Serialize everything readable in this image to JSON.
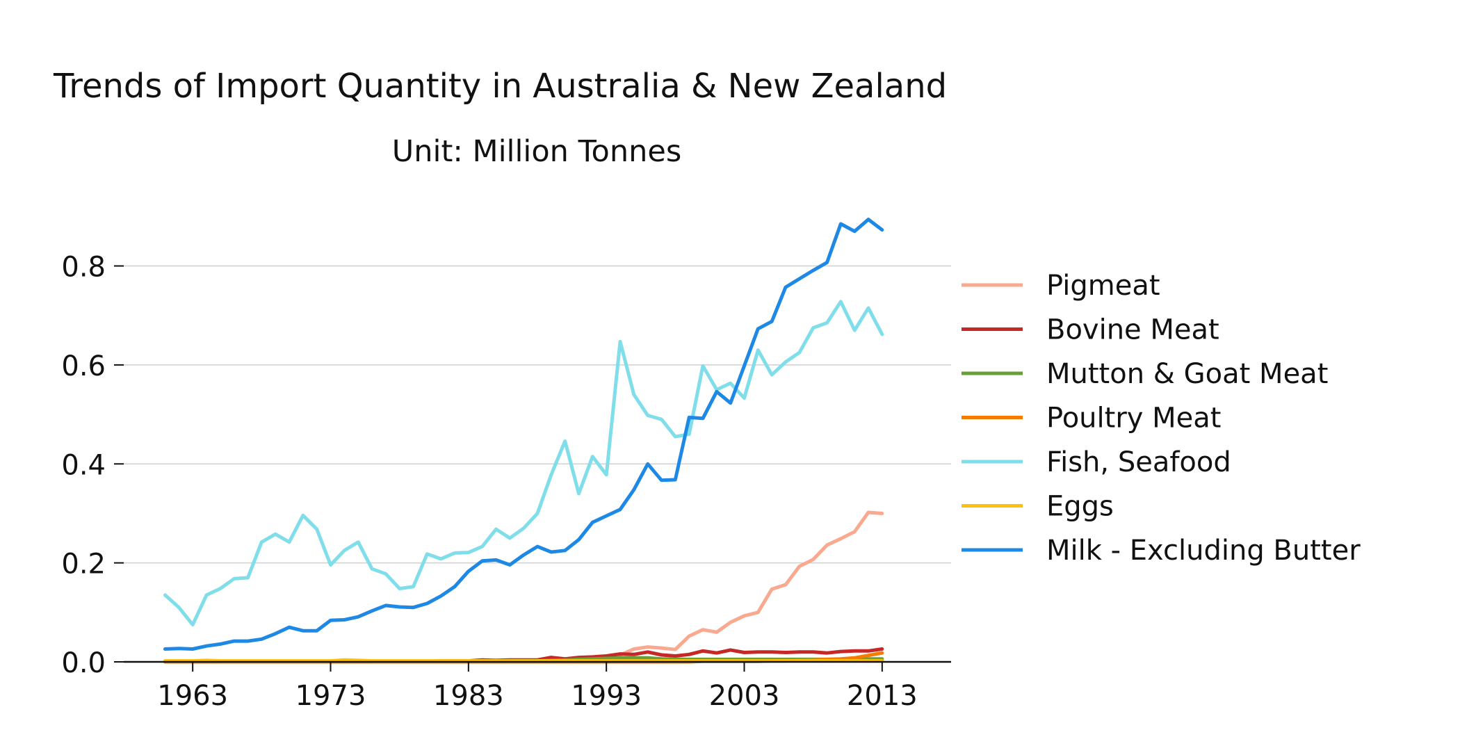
{
  "chart_data": {
    "type": "line",
    "title": "Trends of Import Quantity in Australia & New Zealand",
    "subtitle": "Unit: Million Tonnes",
    "xlabel": "",
    "ylabel": "",
    "xlim": [
      1958,
      2018
    ],
    "ylim": [
      0,
      0.93
    ],
    "xticks": [
      1963,
      1973,
      1983,
      1993,
      2003,
      2013
    ],
    "yticks": [
      0.0,
      0.2,
      0.4,
      0.6,
      0.8
    ],
    "xtick_labels": [
      "1963",
      "1973",
      "1983",
      "1993",
      "2003",
      "2013"
    ],
    "ytick_labels": [
      "0.0",
      "0.2",
      "0.4",
      "0.6",
      "0.8"
    ],
    "grid": "horizontal",
    "legend_position": "right",
    "x": [
      1961,
      1962,
      1963,
      1964,
      1965,
      1966,
      1967,
      1968,
      1969,
      1970,
      1971,
      1972,
      1973,
      1974,
      1975,
      1976,
      1977,
      1978,
      1979,
      1980,
      1981,
      1982,
      1983,
      1984,
      1985,
      1986,
      1987,
      1988,
      1989,
      1990,
      1991,
      1992,
      1993,
      1994,
      1995,
      1996,
      1997,
      1998,
      1999,
      2000,
      2001,
      2002,
      2003,
      2004,
      2005,
      2006,
      2007,
      2008,
      2009,
      2010,
      2011,
      2012,
      2013
    ],
    "series": [
      {
        "name": "Pigmeat",
        "color": "#f9a98f",
        "values": [
          0.001,
          0.001,
          0.001,
          0.001,
          0.001,
          0.001,
          0.001,
          0.001,
          0.001,
          0.001,
          0.001,
          0.001,
          0.001,
          0.001,
          0.001,
          0.001,
          0.001,
          0.001,
          0.001,
          0.001,
          0.001,
          0.001,
          0.001,
          0.001,
          0.001,
          0.002,
          0.002,
          0.002,
          0.003,
          0.004,
          0.005,
          0.007,
          0.01,
          0.014,
          0.026,
          0.03,
          0.028,
          0.025,
          0.052,
          0.065,
          0.06,
          0.08,
          0.093,
          0.1,
          0.147,
          0.156,
          0.193,
          0.207,
          0.236,
          0.249,
          0.263,
          0.302,
          0.3
        ]
      },
      {
        "name": "Bovine Meat",
        "color": "#c62828",
        "values": [
          0.001,
          0.001,
          0.001,
          0.001,
          0.001,
          0.001,
          0.001,
          0.001,
          0.001,
          0.001,
          0.001,
          0.001,
          0.001,
          0.001,
          0.001,
          0.001,
          0.001,
          0.001,
          0.001,
          0.001,
          0.002,
          0.002,
          0.002,
          0.004,
          0.003,
          0.004,
          0.004,
          0.004,
          0.009,
          0.006,
          0.009,
          0.01,
          0.012,
          0.016,
          0.015,
          0.02,
          0.014,
          0.012,
          0.015,
          0.022,
          0.018,
          0.024,
          0.019,
          0.02,
          0.02,
          0.019,
          0.02,
          0.02,
          0.018,
          0.021,
          0.022,
          0.022,
          0.026
        ]
      },
      {
        "name": "Mutton & Goat Meat",
        "color": "#689f38",
        "values": [
          0.0,
          0.0,
          0.0,
          0.0,
          0.0,
          0.0,
          0.0,
          0.0,
          0.0,
          0.0,
          0.0,
          0.0,
          0.0,
          0.0,
          0.0,
          0.0,
          0.0,
          0.0,
          0.0,
          0.0,
          0.0,
          0.001,
          0.001,
          0.001,
          0.001,
          0.002,
          0.002,
          0.002,
          0.003,
          0.004,
          0.005,
          0.006,
          0.007,
          0.008,
          0.008,
          0.008,
          0.006,
          0.005,
          0.005,
          0.005,
          0.005,
          0.005,
          0.005,
          0.005,
          0.005,
          0.005,
          0.005,
          0.005,
          0.005,
          0.005,
          0.005,
          0.006,
          0.006
        ]
      },
      {
        "name": "Poultry Meat",
        "color": "#f57c00",
        "values": [
          0.0,
          0.0,
          0.0,
          0.0,
          0.0,
          0.0,
          0.0,
          0.0,
          0.0,
          0.0,
          0.0,
          0.0,
          0.0,
          0.0,
          0.0,
          0.0,
          0.0,
          0.0,
          0.0,
          0.0,
          0.0,
          0.0,
          0.0,
          0.0,
          0.0,
          0.0,
          0.0,
          0.0,
          0.0,
          0.0,
          0.0,
          0.0,
          0.0,
          0.0,
          0.0,
          0.0,
          0.0,
          0.0,
          0.0,
          0.001,
          0.001,
          0.001,
          0.001,
          0.001,
          0.002,
          0.002,
          0.003,
          0.004,
          0.005,
          0.006,
          0.008,
          0.013,
          0.018
        ]
      },
      {
        "name": "Fish, Seafood",
        "color": "#80deea",
        "values": [
          0.135,
          0.11,
          0.075,
          0.135,
          0.148,
          0.168,
          0.17,
          0.242,
          0.258,
          0.242,
          0.296,
          0.268,
          0.196,
          0.225,
          0.242,
          0.188,
          0.178,
          0.148,
          0.152,
          0.218,
          0.208,
          0.22,
          0.221,
          0.233,
          0.268,
          0.25,
          0.27,
          0.3,
          0.378,
          0.446,
          0.34,
          0.415,
          0.378,
          0.647,
          0.54,
          0.498,
          0.49,
          0.455,
          0.46,
          0.598,
          0.55,
          0.563,
          0.533,
          0.63,
          0.58,
          0.606,
          0.625,
          0.675,
          0.685,
          0.728,
          0.67,
          0.715,
          0.662
        ]
      },
      {
        "name": "Eggs",
        "color": "#ffc107",
        "values": [
          0.002,
          0.002,
          0.002,
          0.003,
          0.002,
          0.002,
          0.002,
          0.002,
          0.002,
          0.002,
          0.002,
          0.002,
          0.002,
          0.004,
          0.003,
          0.002,
          0.002,
          0.002,
          0.002,
          0.002,
          0.002,
          0.002,
          0.002,
          0.002,
          0.002,
          0.002,
          0.002,
          0.002,
          0.002,
          0.002,
          0.002,
          0.002,
          0.002,
          0.002,
          0.002,
          0.002,
          0.002,
          0.002,
          0.002,
          0.002,
          0.002,
          0.002,
          0.002,
          0.002,
          0.002,
          0.002,
          0.002,
          0.002,
          0.002,
          0.002,
          0.002,
          0.002,
          0.002
        ]
      },
      {
        "name": "Milk - Excluding Butter",
        "color": "#1e88e5",
        "values": [
          0.026,
          0.027,
          0.026,
          0.032,
          0.036,
          0.042,
          0.042,
          0.046,
          0.057,
          0.07,
          0.063,
          0.063,
          0.084,
          0.085,
          0.091,
          0.103,
          0.114,
          0.111,
          0.11,
          0.118,
          0.133,
          0.152,
          0.183,
          0.204,
          0.206,
          0.196,
          0.216,
          0.233,
          0.222,
          0.225,
          0.247,
          0.282,
          0.295,
          0.308,
          0.348,
          0.4,
          0.367,
          0.368,
          0.494,
          0.492,
          0.546,
          0.523,
          0.598,
          0.673,
          0.688,
          0.757,
          0.774,
          0.791,
          0.807,
          0.885,
          0.87,
          0.894,
          0.873
        ]
      }
    ]
  }
}
